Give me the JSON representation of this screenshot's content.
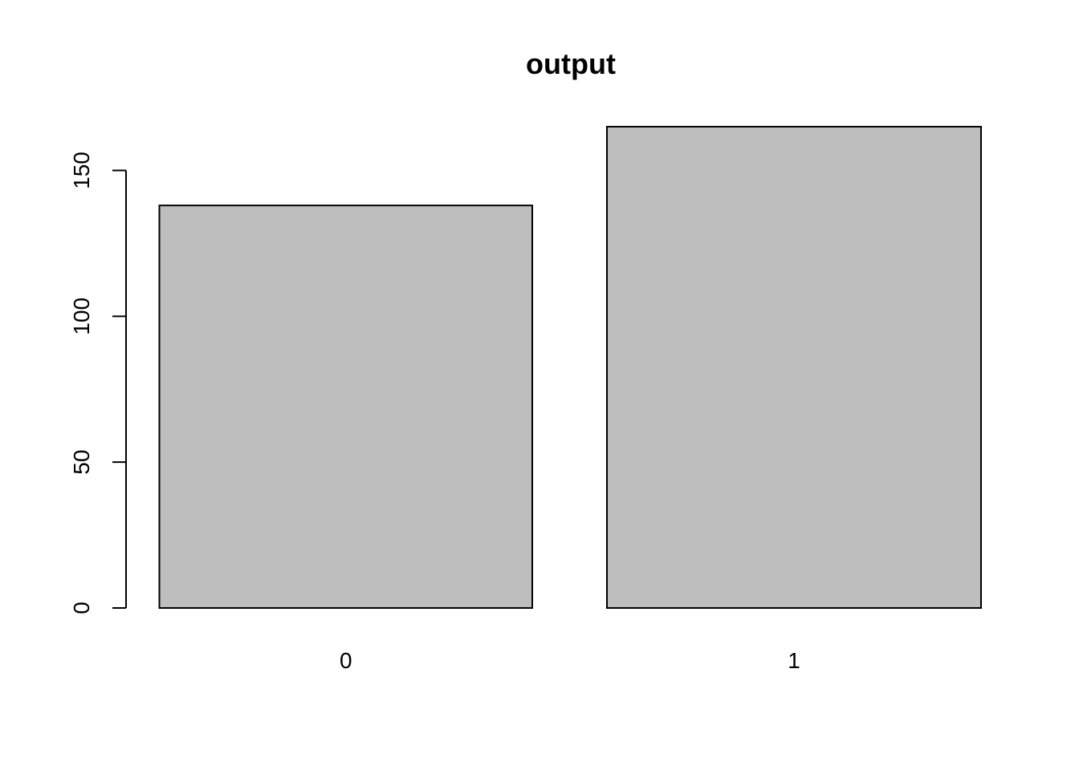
{
  "chart_data": {
    "type": "bar",
    "title": "output",
    "xlabel": "",
    "ylabel": "",
    "categories": [
      "0",
      "1"
    ],
    "values": [
      138,
      165
    ],
    "ylim": [
      0,
      165
    ],
    "yticks": [
      0,
      50,
      100,
      150
    ],
    "grid": false,
    "legend": "none",
    "colors": {
      "bar_fill": "#bebebe",
      "bar_stroke": "#000000",
      "axis": "#000000",
      "text": "#000000",
      "background": "#ffffff"
    }
  }
}
